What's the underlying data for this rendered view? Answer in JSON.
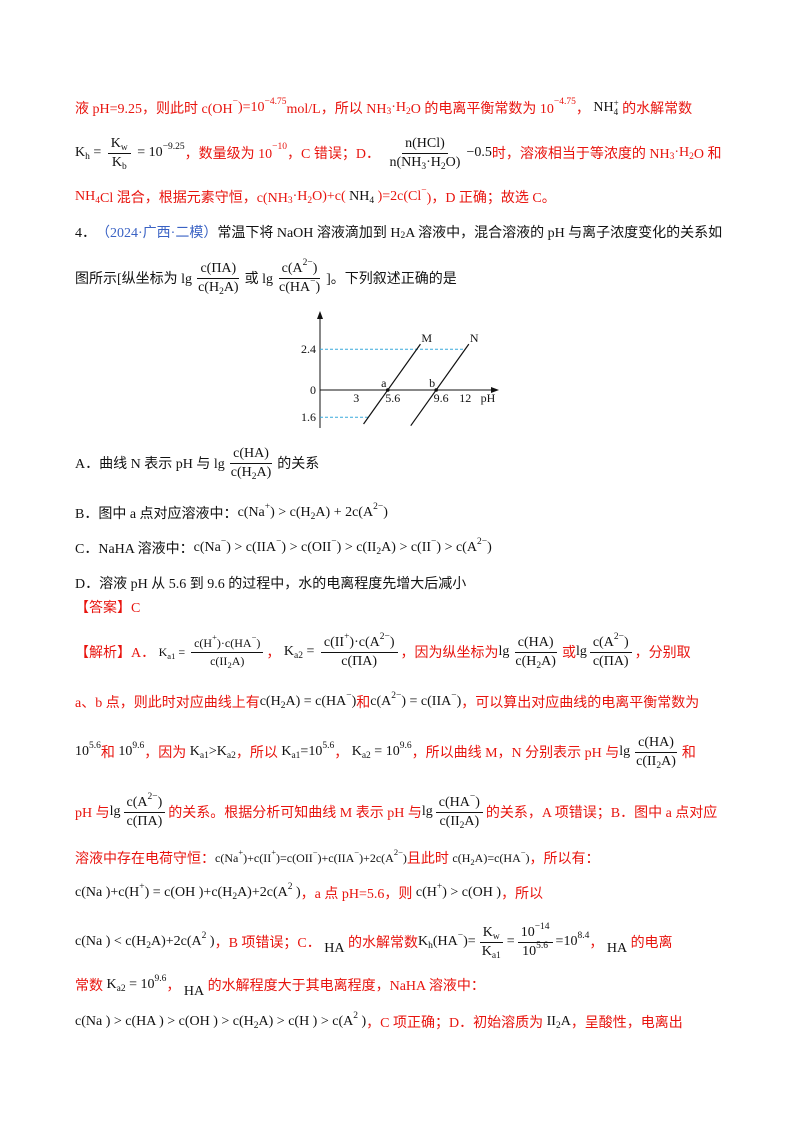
{
  "colors": {
    "red": "#e8140e",
    "blue": "#3a62c4",
    "black": "#111111",
    "guide": "#39a9dc"
  },
  "previous_solution": {
    "lines": [
      [
        {
          "r": "液 pH=9.25，则此时 c(OH"
        },
        {
          "rp": "−"
        },
        {
          "r": ")=10"
        },
        {
          "rp": "−4.75"
        },
        {
          "r": "mol/L，所以 NH"
        },
        {
          "rs": "3"
        },
        {
          "r": "·H"
        },
        {
          "rs": "2"
        },
        {
          "r": "O 的电离平衡常数为 10"
        },
        {
          "rp": "−4.75"
        },
        {
          "r": "， "
        },
        {
          "k": "NH"
        },
        {
          "st": {
            "p": "+",
            "s": "4"
          }
        },
        {
          "r": " 的水解常数"
        }
      ],
      [
        {
          "k": "K"
        },
        {
          "ks": "h"
        },
        {
          "k": " = "
        },
        {
          "frac": {
            "n": [
              {
                "k": "K"
              },
              {
                "ks": "w"
              }
            ],
            "d": [
              {
                "k": "K"
              },
              {
                "ks": "b"
              }
            ]
          }
        },
        {
          "k": " = 10"
        },
        {
          "kp": "−9.25"
        },
        {
          "r": "，数量级为 10"
        },
        {
          "rp": "−10"
        },
        {
          "r": "，C 错误；D． "
        },
        {
          "frac": {
            "n": [
              {
                "k": "n(HCl)"
              }
            ],
            "d": [
              {
                "k": "n(NH"
              },
              {
                "ks": "3"
              },
              {
                "k": "·H"
              },
              {
                "ks": "2"
              },
              {
                "k": "O)"
              }
            ]
          }
        },
        {
          "k": "−0.5"
        },
        {
          "r": "时，溶液相当于等浓度的 NH"
        },
        {
          "rs": "3"
        },
        {
          "r": "·H"
        },
        {
          "rs": "2"
        },
        {
          "r": "O 和"
        }
      ],
      [
        {
          "r": "NH"
        },
        {
          "rs": "4"
        },
        {
          "r": "Cl 混合，根据元素守恒，c(NH"
        },
        {
          "rs": "3"
        },
        {
          "r": "·H"
        },
        {
          "rs": "2"
        },
        {
          "r": "O)+c( "
        },
        {
          "k": "NH"
        },
        {
          "ks": "4"
        },
        {
          "r": " )=2c(Cl"
        },
        {
          "rp": "−"
        },
        {
          "r": ")，D 正确；故选 C。"
        }
      ]
    ]
  },
  "question": {
    "stem": [
      [
        {
          "k": "4．"
        },
        {
          "b": "（2024·广西·二模）"
        },
        {
          "k": "常温下将 NaOH 溶液滴加到 H"
        },
        {
          "ks": "2"
        },
        {
          "k": "A 溶液中，混合溶液的 pH 与离子浓度变化的关系如"
        }
      ],
      [
        {
          "k": "图所示[纵坐标为 lg"
        },
        {
          "frac": {
            "n": [
              {
                "k": "c(ΠA)"
              }
            ],
            "d": [
              {
                "k": "c(H"
              },
              {
                "ks": "2"
              },
              {
                "k": "A)"
              }
            ]
          }
        },
        {
          "k": "或 lg"
        },
        {
          "frac": {
            "n": [
              {
                "k": "c(A"
              },
              {
                "kp": "2−"
              },
              {
                "k": ")"
              }
            ],
            "d": [
              {
                "k": "c(HA"
              },
              {
                "kp": "−"
              },
              {
                "k": ")"
              }
            ]
          }
        },
        {
          "k": "]。下列叙述正确的是"
        }
      ]
    ],
    "figure": {
      "x_label": "pH",
      "x_ticks": [
        {
          "label": "3",
          "value": 3
        },
        {
          "label": "5.6",
          "value": 5.6
        },
        {
          "label": "9.6",
          "value": 9.6
        },
        {
          "label": "12",
          "value": 12
        }
      ],
      "y_ticks": [
        {
          "label": "2.4",
          "value": 2.4
        },
        {
          "label": "0",
          "value": 0
        },
        {
          "label": "1.6",
          "value": -1.6
        }
      ],
      "lines": [
        {
          "name": "M",
          "points": [
            [
              3.6,
              -2.0
            ],
            [
              8.3,
              2.7
            ]
          ]
        },
        {
          "name": "N",
          "points": [
            [
              7.5,
              -2.1
            ],
            [
              12.3,
              2.7
            ]
          ]
        }
      ],
      "guides": [
        {
          "y": 2.4,
          "x_end": 12
        },
        {
          "y": -1.6,
          "x_end": 4
        }
      ],
      "points": [
        {
          "label": "a",
          "x": 5.6,
          "y": 0
        },
        {
          "label": "b",
          "x": 9.6,
          "y": 0
        }
      ]
    },
    "options": [
      [
        {
          "k": "A．曲线 N 表示 pH 与 lg"
        },
        {
          "frac": {
            "n": [
              {
                "k": "c(HA)"
              }
            ],
            "d": [
              {
                "k": "c(H"
              },
              {
                "ks": "2"
              },
              {
                "k": "A)"
              }
            ]
          }
        },
        {
          "k": "的关系"
        }
      ],
      [
        {
          "k": "B．图中 a 点对应溶液中："
        },
        {
          "k": "c(Na"
        },
        {
          "kp": "+"
        },
        {
          "k": ") > c(H"
        },
        {
          "ks": "2"
        },
        {
          "k": "A) + 2c(A"
        },
        {
          "kp": "2−"
        },
        {
          "k": ")"
        }
      ],
      [
        {
          "k": "C．NaHA 溶液中："
        },
        {
          "k": "c(Na"
        },
        {
          "kp": "−"
        },
        {
          "k": ") > c(IIA"
        },
        {
          "kp": "−"
        },
        {
          "k": ") > c(OII"
        },
        {
          "kp": "−"
        },
        {
          "k": ") > c(II"
        },
        {
          "ks": "2"
        },
        {
          "k": "A) > c(II"
        },
        {
          "kp": "−"
        },
        {
          "k": ") > c(A"
        },
        {
          "kp": "2−"
        },
        {
          "k": ")"
        }
      ],
      [
        {
          "k": "D．溶液 pH 从 5.6 到 9.6 的过程中，水的电离程度先增大后减小"
        }
      ]
    ]
  },
  "answer": {
    "line": [
      {
        "r": "【答案】C"
      }
    ]
  },
  "analysis": {
    "lines": [
      [
        {
          "r": "【解析】A． "
        },
        {
          "small": [
            {
              "k": "K"
            },
            {
              "ks": "a1"
            },
            {
              "k": " = "
            },
            {
              "frac": {
                "n": [
                  {
                    "k": "c(H"
                  },
                  {
                    "kp": "+"
                  },
                  {
                    "k": ")·c(HA"
                  },
                  {
                    "kp": "−"
                  },
                  {
                    "k": ")"
                  }
                ],
                "d": [
                  {
                    "k": "c(II"
                  },
                  {
                    "ks": "2"
                  },
                  {
                    "k": "A)"
                  }
                ]
              }
            }
          ]
        },
        {
          "r": "， "
        },
        {
          "k": "K"
        },
        {
          "ks": "a2"
        },
        {
          "k": " = "
        },
        {
          "frac": {
            "n": [
              {
                "k": "c(II"
              },
              {
                "kp": "+"
              },
              {
                "k": ")·c(A"
              },
              {
                "kp": "2−"
              },
              {
                "k": ")"
              }
            ],
            "d": [
              {
                "k": "c(ΠA)"
              }
            ]
          }
        },
        {
          "r": "，因为纵坐标为"
        },
        {
          "k": "lg"
        },
        {
          "frac": {
            "n": [
              {
                "k": "c(HA)"
              }
            ],
            "d": [
              {
                "k": "c(H"
              },
              {
                "ks": "2"
              },
              {
                "k": "A)"
              }
            ]
          }
        },
        {
          "r": "或"
        },
        {
          "k": "lg"
        },
        {
          "frac": {
            "n": [
              {
                "k": "c(A"
              },
              {
                "kp": "2−"
              },
              {
                "k": ")"
              }
            ],
            "d": [
              {
                "k": "c(ΠA)"
              }
            ]
          }
        },
        {
          "r": "，分别取"
        }
      ],
      [
        {
          "r": "a、b 点，则此时对应曲线上有"
        },
        {
          "k": "c(H"
        },
        {
          "ks": "2"
        },
        {
          "k": "A) = c(HA"
        },
        {
          "kp": "−"
        },
        {
          "k": ")"
        },
        {
          "r": "和"
        },
        {
          "k": "c(A"
        },
        {
          "kp": "2−"
        },
        {
          "k": ") = c(IIA"
        },
        {
          "kp": "−"
        },
        {
          "k": ")"
        },
        {
          "r": "，可以算出对应曲线的电离平衡常数为"
        }
      ],
      [
        {
          "k": "10"
        },
        {
          "kp": "5.6"
        },
        {
          "r": "和 "
        },
        {
          "k": "10"
        },
        {
          "kp": "9.6"
        },
        {
          "r": "，因为 "
        },
        {
          "k": "K"
        },
        {
          "ks": "a1"
        },
        {
          "k": ">K"
        },
        {
          "ks": "a2"
        },
        {
          "r": "，所以 "
        },
        {
          "k": "K"
        },
        {
          "ks": "a1"
        },
        {
          "k": "=10"
        },
        {
          "kp": "5.6"
        },
        {
          "r": "， "
        },
        {
          "k": "K"
        },
        {
          "ks": "a2"
        },
        {
          "k": " = 10"
        },
        {
          "kp": "9.6"
        },
        {
          "r": "，所以曲线 M，N 分别表示 pH 与"
        },
        {
          "k": "lg"
        },
        {
          "frac": {
            "n": [
              {
                "k": "c(HA)"
              }
            ],
            "d": [
              {
                "k": "c(II"
              },
              {
                "ks": "2"
              },
              {
                "k": "A)"
              }
            ]
          }
        },
        {
          "r": "和"
        }
      ],
      [
        {
          "r": "pH 与"
        },
        {
          "k": "lg"
        },
        {
          "frac": {
            "n": [
              {
                "k": "c(A"
              },
              {
                "kp": "2−"
              },
              {
                "k": ")"
              }
            ],
            "d": [
              {
                "k": "c(ΠA)"
              }
            ]
          }
        },
        {
          "r": "的关系。根据分析可知曲线 M 表示 pH 与"
        },
        {
          "k": "lg"
        },
        {
          "frac": {
            "n": [
              {
                "k": "c(HA"
              },
              {
                "kp": "−"
              },
              {
                "k": ")"
              }
            ],
            "d": [
              {
                "k": "c(II"
              },
              {
                "ks": "2"
              },
              {
                "k": "A)"
              }
            ]
          }
        },
        {
          "r": "的关系，A 项错误；B．图中 a 点对应"
        }
      ],
      [
        {
          "r": "溶液中存在电荷守恒："
        },
        {
          "small": [
            {
              "k": "c(Na"
            },
            {
              "kp": "+"
            },
            {
              "k": ")+c(II"
            },
            {
              "kp": "+"
            },
            {
              "k": ")=c(OII"
            },
            {
              "kp": "−"
            },
            {
              "k": ")+c(IIA"
            },
            {
              "kp": "−"
            },
            {
              "k": ")+2c(A"
            },
            {
              "kp": "2−"
            },
            {
              "k": ")"
            }
          ]
        },
        {
          "r": "且此时 "
        },
        {
          "small": [
            {
              "k": "c(H"
            },
            {
              "ks": "2"
            },
            {
              "k": "A)=c(HA"
            },
            {
              "kp": "−"
            },
            {
              "k": ")"
            }
          ]
        },
        {
          "r": "，所以有："
        }
      ],
      [
        {
          "k": "c(Na )+c(H"
        },
        {
          "kp": "+"
        },
        {
          "k": ") = c(OH )+c(H"
        },
        {
          "ks": "2"
        },
        {
          "k": "A)+2c(A"
        },
        {
          "kp": "2"
        },
        {
          "k": " )"
        },
        {
          "r": "，a 点 pH=5.6，则 "
        },
        {
          "k": "c(H"
        },
        {
          "kp": "+"
        },
        {
          "k": ") > c(OH )"
        },
        {
          "r": "，所以"
        }
      ],
      [
        {
          "k": "c(Na ) < c(H"
        },
        {
          "ks": "2"
        },
        {
          "k": "A)+2c(A"
        },
        {
          "kp": "2"
        },
        {
          "k": " )"
        },
        {
          "r": "，B 项错误；C． "
        },
        {
          "kl": "HA"
        },
        {
          "r": " 的水解常数"
        },
        {
          "k": "K"
        },
        {
          "ks": "h"
        },
        {
          "k": "(HA"
        },
        {
          "kp": "−"
        },
        {
          "k": ")="
        },
        {
          "frac": {
            "n": [
              {
                "k": "K"
              },
              {
                "ks": "w"
              }
            ],
            "d": [
              {
                "k": "K"
              },
              {
                "ks": "a1"
              }
            ]
          }
        },
        {
          "k": "="
        },
        {
          "frac": {
            "n": [
              {
                "k": "10"
              },
              {
                "kp": "−14"
              }
            ],
            "d": [
              {
                "k": "10"
              },
              {
                "kp": "5.6"
              }
            ]
          }
        },
        {
          "k": "=10"
        },
        {
          "kp": "8.4"
        },
        {
          "r": "， "
        },
        {
          "kl": "HA"
        },
        {
          "r": " 的电离"
        }
      ],
      [
        {
          "r": "常数 "
        },
        {
          "k": "K"
        },
        {
          "ks": "a2"
        },
        {
          "k": " = 10"
        },
        {
          "kp": "9.6"
        },
        {
          "r": "， "
        },
        {
          "kl": "HA"
        },
        {
          "r": " 的水解程度大于其电离程度，NaHA 溶液中："
        }
      ],
      [
        {
          "k": "c(Na ) > c(HA ) > c(OH ) > c(H"
        },
        {
          "ks": "2"
        },
        {
          "k": "A) > c(H ) > c(A"
        },
        {
          "kp": "2"
        },
        {
          "k": " )"
        },
        {
          "r": "，C 项正确；D．初始溶质为 "
        },
        {
          "k": "II"
        },
        {
          "ks": "2"
        },
        {
          "k": "A"
        },
        {
          "r": "，呈酸性，电离出"
        }
      ]
    ]
  }
}
